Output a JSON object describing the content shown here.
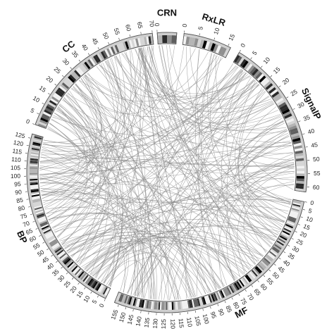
{
  "diagram": {
    "type": "circos-chord",
    "segments": [
      {
        "id": "CC",
        "label": "CC",
        "length": 70,
        "tick_step": 5,
        "label_side": "outer"
      },
      {
        "id": "CRN",
        "label": "CRN",
        "length": 4,
        "tick_step": 5,
        "label_side": "outer"
      },
      {
        "id": "RxLR",
        "label": "RxLR",
        "length": 16,
        "tick_step": 5,
        "label_side": "outer"
      },
      {
        "id": "SignalP",
        "label": "SignalP",
        "length": 62,
        "tick_step": 5,
        "label_side": "outer"
      },
      {
        "id": "MF",
        "label": "MF",
        "length": 158,
        "tick_step": 5,
        "label_side": "outer"
      },
      {
        "id": "BP",
        "label": "BP",
        "length": 128,
        "tick_step": 5,
        "label_side": "outer"
      }
    ],
    "heat_colors": [
      "#f2f2f2",
      "#d6d6d6",
      "#b5b5b5",
      "#8f8f8f",
      "#5e5e5e",
      "#2a2a2a",
      "#000000"
    ],
    "link_color": "#8a8a8a",
    "link_count": 260
  }
}
